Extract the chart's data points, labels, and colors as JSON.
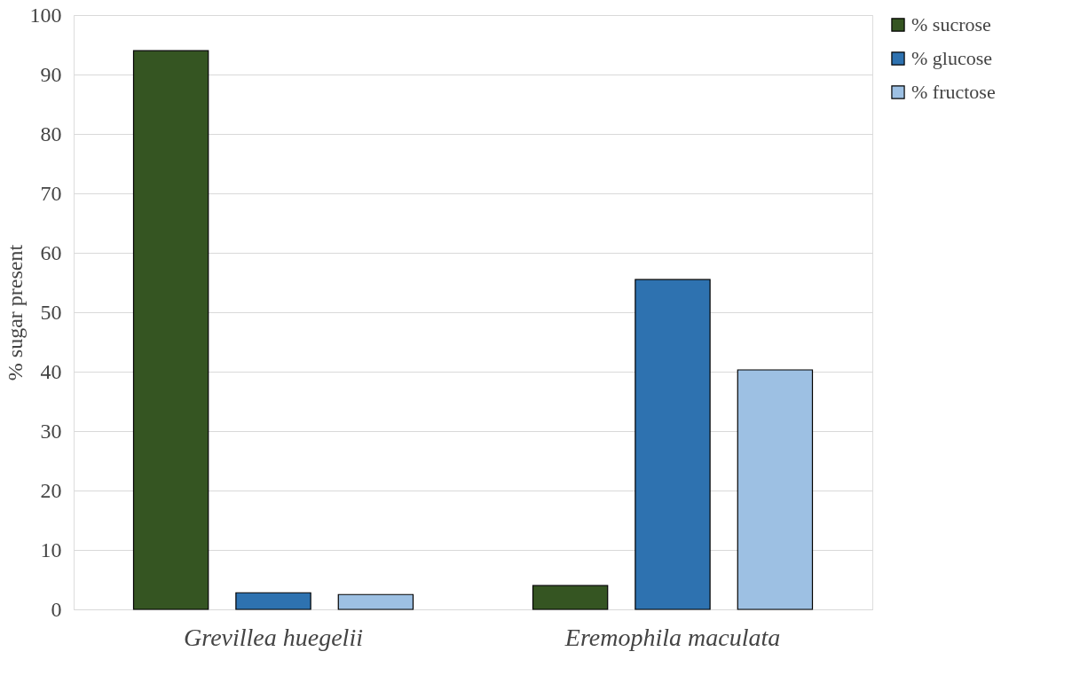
{
  "chart_data": {
    "type": "bar",
    "ylabel": "% sugar present",
    "categories": [
      "Grevillea huegelii",
      "Eremophila maculata"
    ],
    "series": [
      {
        "name": "% sucrose",
        "color": "#355522",
        "values": [
          94.0,
          4.0
        ]
      },
      {
        "name": "% glucose",
        "color": "#2e72b0",
        "values": [
          2.8,
          55.5
        ]
      },
      {
        "name": "% fructose",
        "color": "#9dc0e3",
        "values": [
          2.5,
          40.3
        ]
      }
    ],
    "ylim": [
      0,
      100
    ],
    "yticks": [
      0,
      10,
      20,
      30,
      40,
      50,
      60,
      70,
      80,
      90,
      100
    ],
    "grid": "y",
    "legend": "right"
  }
}
